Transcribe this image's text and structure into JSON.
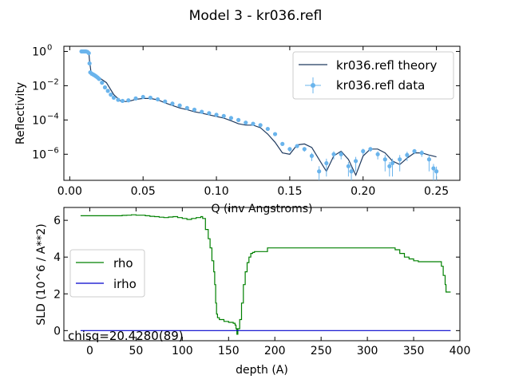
{
  "figure": {
    "title": "Model 3 - kr036.refl"
  },
  "colors": {
    "theory": "#1f3a5f",
    "data": "#6ab4ec",
    "rho": "#008000",
    "irho": "#0000cc"
  },
  "chart_data": [
    {
      "type": "line",
      "name": "reflectivity",
      "xlabel": "Q (inv Angstroms)",
      "ylabel": "Reflectivity",
      "yscale": "log",
      "xlim": [
        -0.004,
        0.266
      ],
      "ylim": [
        3e-08,
        2.0
      ],
      "xticks": [
        0.0,
        0.05,
        0.1,
        0.15,
        0.2,
        0.25
      ],
      "xtick_labels": [
        "0.00",
        "0.05",
        "0.10",
        "0.15",
        "0.20",
        "0.25"
      ],
      "yticks": [
        1e-06,
        0.0001,
        0.01,
        1
      ],
      "ytick_labels": [
        {
          "base": "10",
          "exp": "−6"
        },
        {
          "base": "10",
          "exp": "−4"
        },
        {
          "base": "10",
          "exp": "−2"
        },
        {
          "base": "10",
          "exp": "0"
        }
      ],
      "legend_position": "top-right",
      "series": [
        {
          "name": "kr036.refl theory",
          "style": "line",
          "x": [
            0.008,
            0.011,
            0.013,
            0.0135,
            0.0145,
            0.016,
            0.02,
            0.025,
            0.03,
            0.035,
            0.04,
            0.045,
            0.05,
            0.055,
            0.06,
            0.065,
            0.07,
            0.075,
            0.08,
            0.085,
            0.09,
            0.095,
            0.1,
            0.105,
            0.11,
            0.115,
            0.12,
            0.125,
            0.13,
            0.135,
            0.14,
            0.145,
            0.15,
            0.155,
            0.16,
            0.165,
            0.17,
            0.175,
            0.18,
            0.185,
            0.19,
            0.195,
            0.2,
            0.205,
            0.21,
            0.215,
            0.22,
            0.225,
            0.23,
            0.235,
            0.24,
            0.245,
            0.25
          ],
          "y": [
            1.0,
            1.0,
            0.95,
            0.3,
            0.06,
            0.04,
            0.03,
            0.015,
            0.003,
            0.0012,
            0.0012,
            0.0016,
            0.0018,
            0.0018,
            0.0015,
            0.001,
            0.0007,
            0.0005,
            0.0004,
            0.0003,
            0.00025,
            0.0002,
            0.00016,
            0.00013,
            9e-05,
            6e-05,
            5e-05,
            5e-05,
            3.5e-05,
            1.5e-05,
            5e-06,
            1.2e-06,
            1e-06,
            3.5e-06,
            4e-06,
            2.5e-06,
            5e-07,
            1e-07,
            8e-07,
            1.5e-06,
            5e-07,
            6e-08,
            8e-07,
            2e-06,
            2e-06,
            1.2e-06,
            4e-07,
            2.5e-07,
            6e-07,
            1.2e-06,
            1.2e-06,
            9e-07,
            7e-07
          ]
        },
        {
          "name": "kr036.refl data",
          "style": "errorbar",
          "x": [
            0.008,
            0.009,
            0.01,
            0.011,
            0.012,
            0.013,
            0.0135,
            0.014,
            0.015,
            0.016,
            0.017,
            0.018,
            0.019,
            0.02,
            0.022,
            0.024,
            0.026,
            0.028,
            0.03,
            0.033,
            0.036,
            0.04,
            0.045,
            0.05,
            0.055,
            0.06,
            0.065,
            0.07,
            0.075,
            0.08,
            0.085,
            0.09,
            0.095,
            0.1,
            0.105,
            0.11,
            0.115,
            0.12,
            0.125,
            0.13,
            0.135,
            0.14,
            0.145,
            0.15,
            0.155,
            0.16,
            0.165,
            0.17,
            0.175,
            0.18,
            0.185,
            0.19,
            0.192,
            0.195,
            0.2,
            0.205,
            0.21,
            0.215,
            0.218,
            0.22,
            0.225,
            0.23,
            0.235,
            0.24,
            0.245,
            0.248,
            0.25
          ],
          "y": [
            1.0,
            1.0,
            1.0,
            1.0,
            0.95,
            0.8,
            0.2,
            0.06,
            0.05,
            0.045,
            0.04,
            0.035,
            0.03,
            0.025,
            0.015,
            0.008,
            0.005,
            0.003,
            0.002,
            0.0015,
            0.0013,
            0.0014,
            0.0018,
            0.0022,
            0.002,
            0.0016,
            0.0012,
            0.0009,
            0.0007,
            0.0005,
            0.0004,
            0.0003,
            0.00025,
            0.0002,
            0.00017,
            0.00013,
            0.0001,
            7e-05,
            6e-05,
            5e-05,
            3e-05,
            1.5e-05,
            4e-06,
            2e-06,
            3e-06,
            2e-06,
            8e-07,
            1e-07,
            3e-07,
            1e-06,
            1e-06,
            2e-07,
            1e-07,
            4e-07,
            1.5e-06,
            2e-06,
            1e-06,
            5e-07,
            2e-07,
            3e-07,
            5e-07,
            9e-07,
            1.5e-06,
            1.2e-06,
            5e-07,
            1.5e-07,
            1e-07
          ],
          "err": [
            0.05,
            0.05,
            0.05,
            0.05,
            0.05,
            0.05,
            0.01,
            0.003,
            0.002,
            0.002,
            0.002,
            0.002,
            0.001,
            0.001,
            0.0005,
            0.0003,
            0.0002,
            0.0001,
            5e-05,
            4e-05,
            3e-05,
            3e-05,
            4e-05,
            4e-05,
            4e-05,
            3e-05,
            2.5e-05,
            2e-05,
            1.5e-05,
            1e-05,
            8e-06,
            6e-06,
            5e-06,
            4e-06,
            3.5e-06,
            3e-06,
            2.5e-06,
            2e-06,
            1.8e-06,
            1.5e-06,
            1.2e-06,
            1e-06,
            8e-07,
            6e-07,
            7e-07,
            6e-07,
            4e-07,
            1e-07,
            2.5e-07,
            5e-07,
            5e-07,
            1.5e-07,
            9e-08,
            3e-07,
            6e-07,
            6e-07,
            5e-07,
            4e-07,
            1.5e-07,
            2.5e-07,
            4e-07,
            5e-07,
            5e-07,
            5e-07,
            4e-07,
            1.2e-07,
            9e-08
          ]
        }
      ]
    },
    {
      "type": "line",
      "name": "sld-profile",
      "xlabel": "depth (A)",
      "ylabel": "SLD (10^6 / A**2)",
      "xlim": [
        -28,
        400
      ],
      "ylim": [
        -0.55,
        6.7
      ],
      "xticks": [
        0,
        50,
        100,
        150,
        200,
        250,
        300,
        350,
        400
      ],
      "yticks": [
        0,
        2,
        4,
        6
      ],
      "legend_position": "center-left",
      "annotation": "chisq=20.4280(89)",
      "series": [
        {
          "name": "rho",
          "step": true,
          "x": [
            -10,
            30,
            35,
            40,
            45,
            50,
            60,
            65,
            70,
            75,
            80,
            85,
            90,
            95,
            100,
            105,
            110,
            115,
            120,
            122,
            125,
            128,
            130,
            132,
            134,
            135,
            136,
            137,
            138,
            140,
            145,
            150,
            155,
            157,
            158,
            159,
            160,
            162,
            164,
            166,
            168,
            170,
            172,
            174,
            176,
            178,
            180,
            185,
            190,
            192,
            195,
            200,
            250,
            300,
            325,
            330,
            335,
            340,
            345,
            350,
            355,
            360,
            365,
            370,
            375,
            380,
            382,
            384,
            385,
            390
          ],
          "y": [
            6.25,
            6.25,
            6.27,
            6.28,
            6.3,
            6.28,
            6.25,
            6.22,
            6.2,
            6.17,
            6.15,
            6.18,
            6.2,
            6.15,
            6.1,
            6.05,
            6.1,
            6.15,
            6.2,
            6.1,
            5.5,
            5.0,
            4.5,
            3.8,
            3.2,
            2.5,
            1.5,
            0.9,
            0.7,
            0.6,
            0.5,
            0.45,
            0.4,
            0.3,
            0.1,
            -0.2,
            0.1,
            0.6,
            1.5,
            2.5,
            3.2,
            3.7,
            4.0,
            4.2,
            4.25,
            4.3,
            4.3,
            4.3,
            4.3,
            4.5,
            4.5,
            4.5,
            4.5,
            4.5,
            4.5,
            4.4,
            4.2,
            4.0,
            3.9,
            3.8,
            3.75,
            3.75,
            3.75,
            3.75,
            3.75,
            3.5,
            3.0,
            2.5,
            2.1,
            2.1
          ]
        },
        {
          "name": "irho",
          "x": [
            -10,
            390
          ],
          "y": [
            0,
            0
          ]
        }
      ]
    }
  ]
}
